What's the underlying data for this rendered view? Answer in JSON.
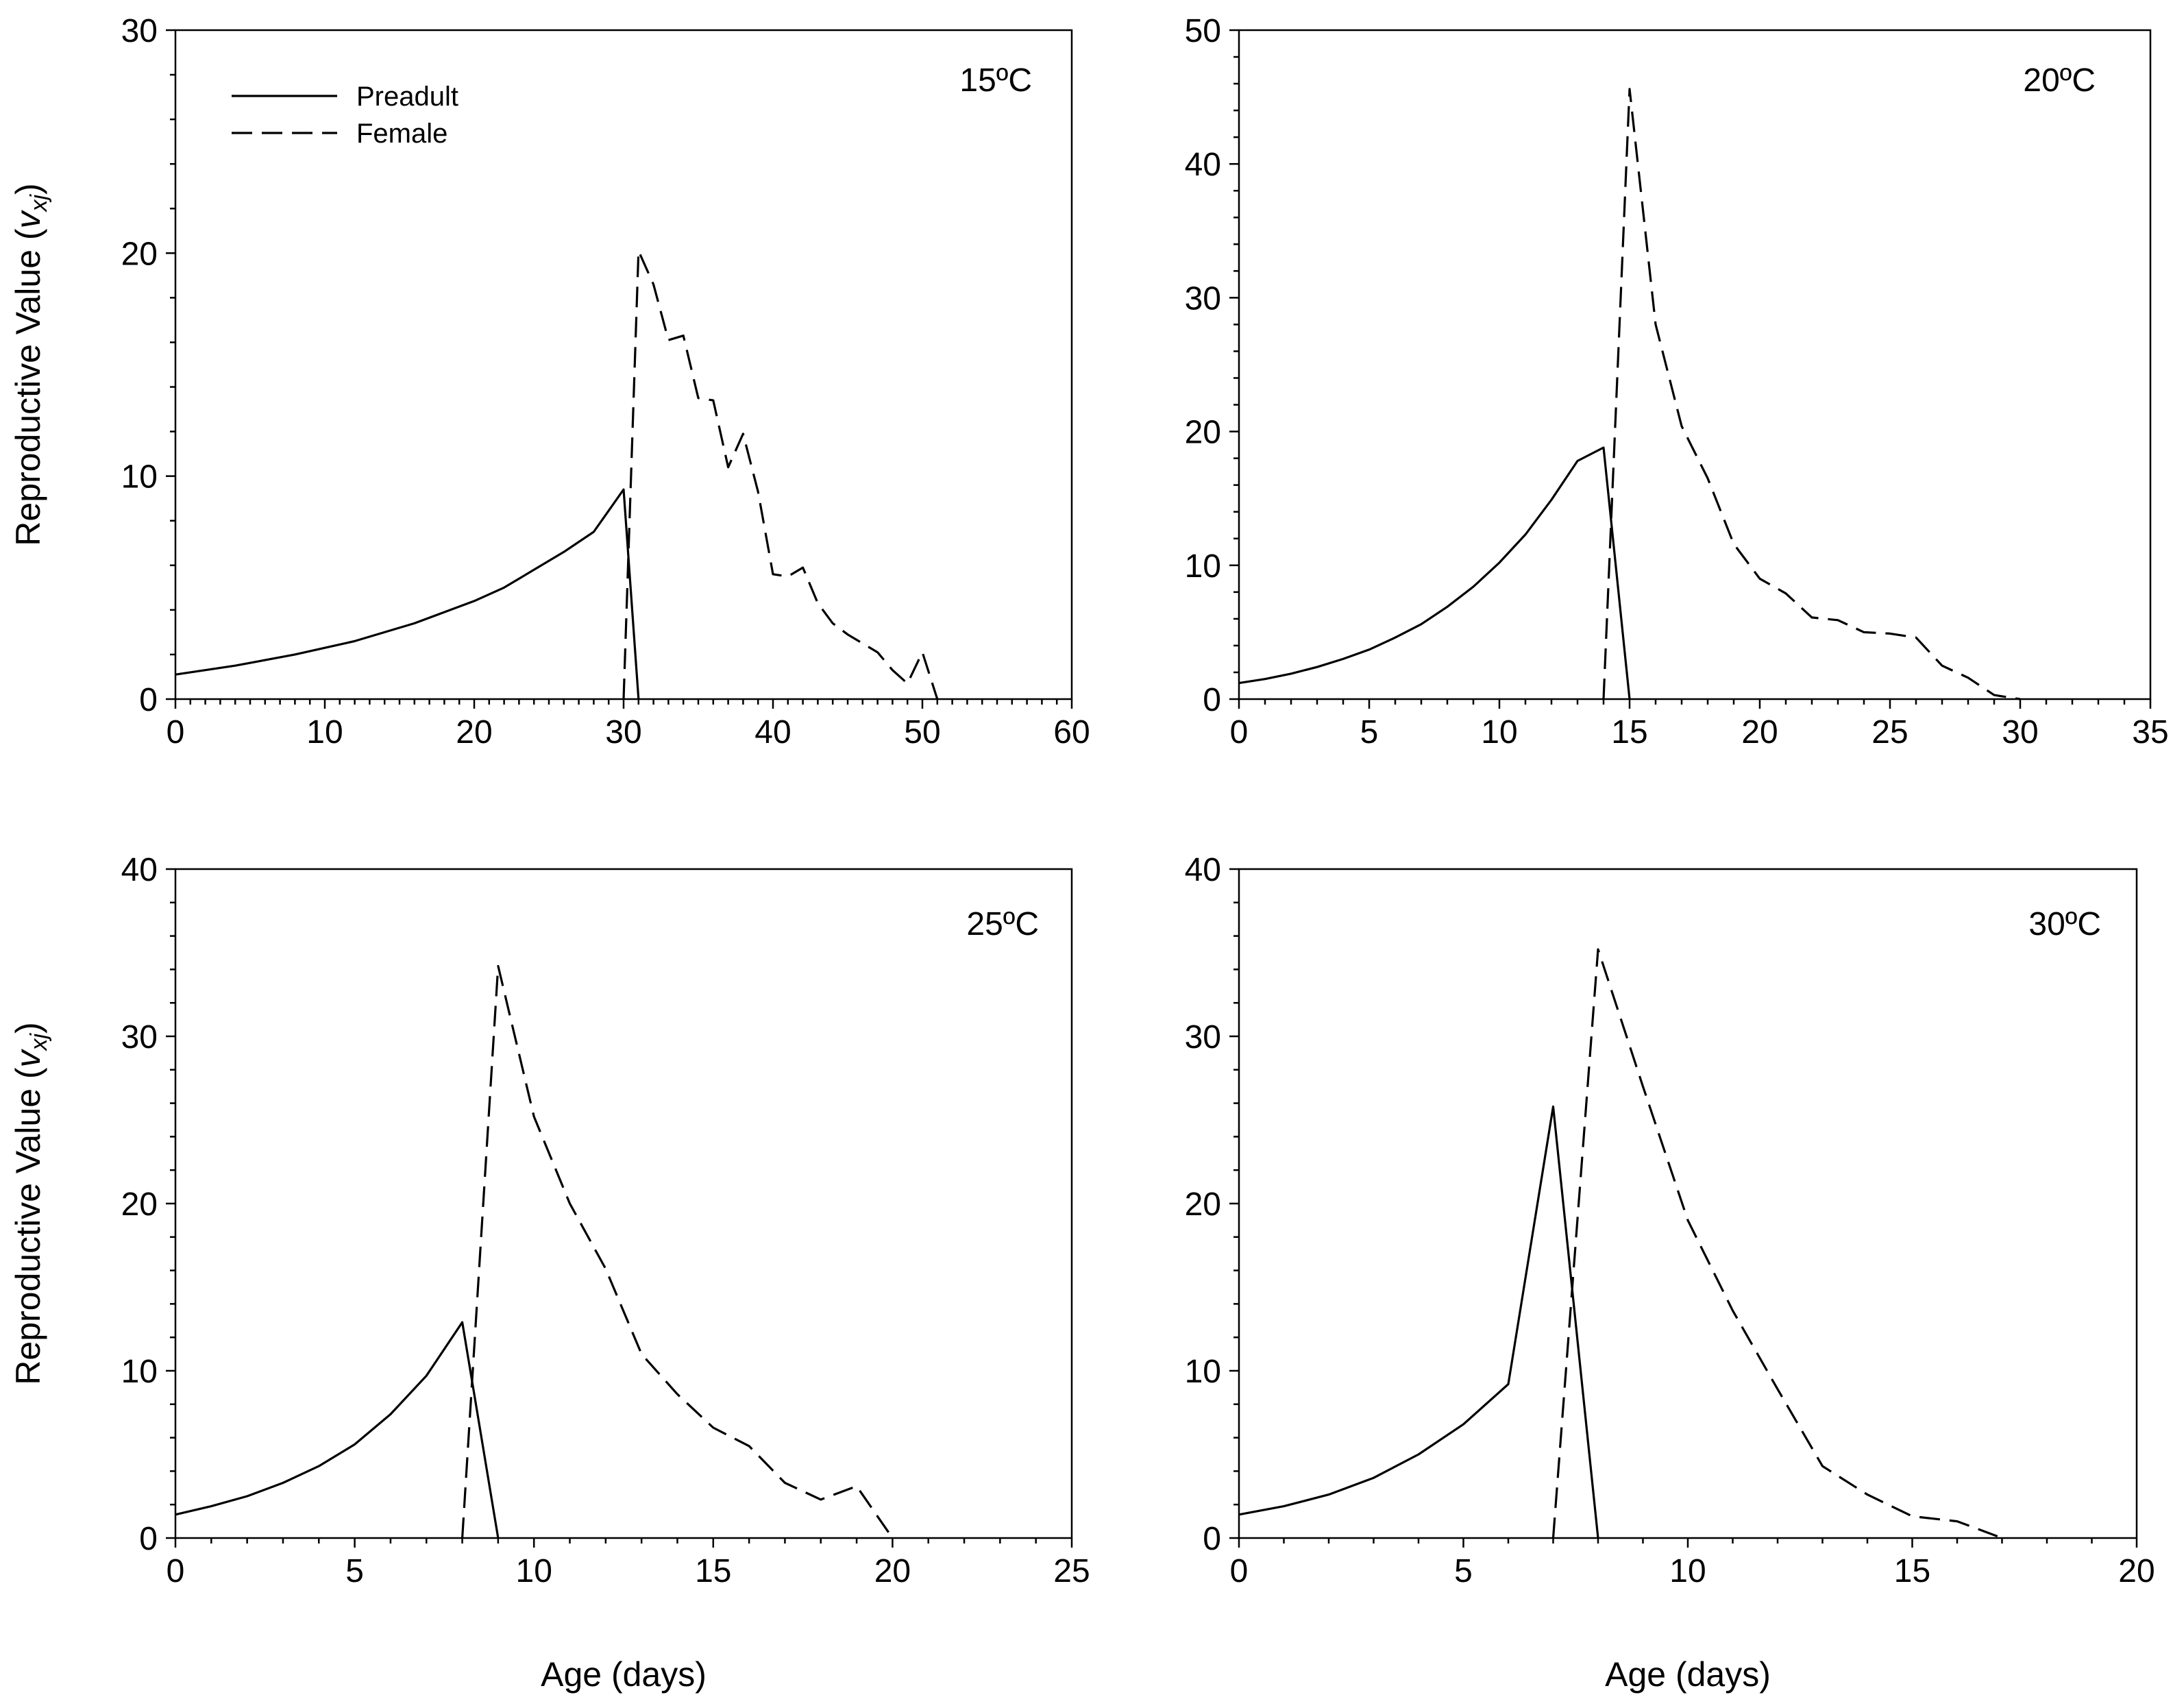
{
  "chart_data": [
    {
      "type": "line",
      "title": "15ºC",
      "xlabel": "",
      "ylabel": "Reproductive Value (v_xj)",
      "xlim": [
        0,
        60
      ],
      "ylim": [
        0,
        30
      ],
      "xticks": [
        0,
        10,
        20,
        30,
        40,
        50,
        60
      ],
      "yticks": [
        0,
        10,
        20,
        30
      ],
      "xminor": 1,
      "yminor": 2,
      "legend": [
        {
          "name": "Preadult",
          "style": "solid"
        },
        {
          "name": "Female",
          "style": "dashed"
        }
      ],
      "series": [
        {
          "name": "Preadult",
          "style": "solid",
          "x": [
            0,
            2,
            4,
            6,
            8,
            10,
            12,
            14,
            16,
            18,
            20,
            22,
            24,
            26,
            28,
            30,
            31
          ],
          "y": [
            1.1,
            1.3,
            1.5,
            1.75,
            2.0,
            2.3,
            2.6,
            3.0,
            3.4,
            3.9,
            4.4,
            5.0,
            5.8,
            6.6,
            7.5,
            9.4,
            0
          ]
        },
        {
          "name": "Female",
          "style": "dashed",
          "x": [
            30,
            31,
            32,
            33,
            34,
            35,
            36,
            37,
            38,
            39,
            40,
            41,
            42,
            43,
            44,
            45,
            46,
            47,
            48,
            49,
            50,
            51
          ],
          "y": [
            0,
            20.1,
            18.6,
            16.1,
            16.3,
            13.5,
            13.4,
            10.4,
            11.9,
            9.3,
            5.6,
            5.5,
            5.9,
            4.3,
            3.4,
            2.9,
            2.5,
            2.1,
            1.3,
            0.7,
            2.1,
            0
          ]
        }
      ]
    },
    {
      "type": "line",
      "title": "20ºC",
      "xlabel": "",
      "ylabel": "",
      "xlim": [
        0,
        35
      ],
      "ylim": [
        0,
        50
      ],
      "xticks": [
        0,
        5,
        10,
        15,
        20,
        25,
        30,
        35
      ],
      "yticks": [
        0,
        10,
        20,
        30,
        40,
        50
      ],
      "xminor": 1,
      "yminor": 2,
      "series": [
        {
          "name": "Preadult",
          "style": "solid",
          "x": [
            0,
            1,
            2,
            3,
            4,
            5,
            6,
            7,
            8,
            9,
            10,
            11,
            12,
            13,
            14,
            15
          ],
          "y": [
            1.2,
            1.5,
            1.9,
            2.4,
            3.0,
            3.7,
            4.6,
            5.6,
            6.9,
            8.4,
            10.2,
            12.3,
            14.9,
            17.8,
            18.8,
            0
          ]
        },
        {
          "name": "Female",
          "style": "dashed",
          "x": [
            14,
            15,
            16,
            17,
            18,
            19,
            20,
            21,
            22,
            23,
            24,
            25,
            26,
            27,
            28,
            29,
            30
          ],
          "y": [
            0,
            45.6,
            28.0,
            20.4,
            16.5,
            11.6,
            9.0,
            7.9,
            6.1,
            5.9,
            5.0,
            4.9,
            4.6,
            2.5,
            1.6,
            0.3,
            0
          ]
        }
      ]
    },
    {
      "type": "line",
      "title": "25ºC",
      "xlabel": "Age (days)",
      "ylabel": "Reproductive Value (v_xj)",
      "xlim": [
        0,
        25
      ],
      "ylim": [
        0,
        40
      ],
      "xticks": [
        0,
        5,
        10,
        15,
        20,
        25
      ],
      "yticks": [
        0,
        10,
        20,
        30,
        40
      ],
      "xminor": 1,
      "yminor": 2,
      "series": [
        {
          "name": "Preadult",
          "style": "solid",
          "x": [
            0,
            1,
            2,
            3,
            4,
            5,
            6,
            7,
            8,
            9
          ],
          "y": [
            1.4,
            1.9,
            2.5,
            3.3,
            4.3,
            5.6,
            7.4,
            9.7,
            12.9,
            0
          ]
        },
        {
          "name": "Female",
          "style": "dashed",
          "x": [
            8,
            9,
            10,
            11,
            12,
            13,
            14,
            15,
            16,
            17,
            18,
            19,
            20
          ],
          "y": [
            0,
            34.2,
            25.2,
            20.0,
            16.1,
            11.0,
            8.6,
            6.6,
            5.5,
            3.3,
            2.3,
            3.1,
            0
          ]
        }
      ]
    },
    {
      "type": "line",
      "title": "30ºC",
      "xlabel": "Age (days)",
      "ylabel": "",
      "xlim": [
        0,
        20
      ],
      "ylim": [
        0,
        40
      ],
      "xticks": [
        0,
        5,
        10,
        15,
        20
      ],
      "yticks": [
        0,
        10,
        20,
        30,
        40
      ],
      "xminor": 1,
      "yminor": 2,
      "series": [
        {
          "name": "Preadult",
          "style": "solid",
          "x": [
            0,
            1,
            2,
            3,
            4,
            5,
            6,
            7,
            8
          ],
          "y": [
            1.4,
            1.9,
            2.6,
            3.6,
            5.0,
            6.8,
            9.2,
            25.8,
            0
          ]
        },
        {
          "name": "Female",
          "style": "dashed",
          "x": [
            7,
            8,
            9,
            10,
            11,
            12,
            13,
            14,
            15,
            16,
            17
          ],
          "y": [
            0,
            35.2,
            27.0,
            19.0,
            13.6,
            8.9,
            4.3,
            2.6,
            1.3,
            1.0,
            0
          ]
        }
      ]
    }
  ]
}
